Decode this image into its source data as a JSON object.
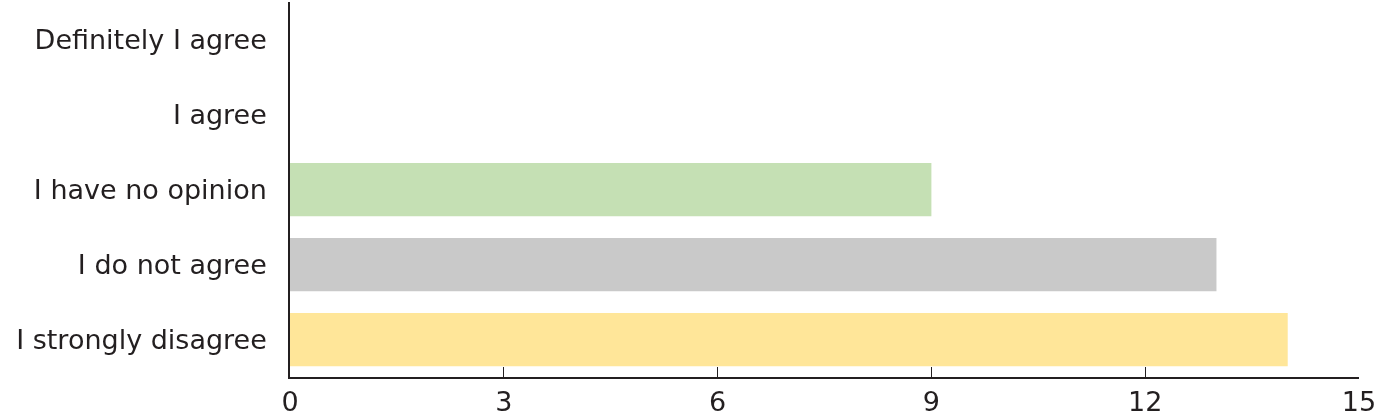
{
  "chart_data": {
    "type": "bar",
    "orientation": "horizontal",
    "categories": [
      "Definitely I agree",
      "I agree",
      "I have no opinion",
      "I do not agree",
      "I strongly disagree"
    ],
    "values": [
      0,
      0,
      9,
      13,
      14
    ],
    "colors": [
      null,
      null,
      "#c5e0b4",
      "#c9c9c9",
      "#ffe699"
    ],
    "xlim": [
      0,
      15
    ],
    "xticks": [
      0,
      3,
      6,
      9,
      12,
      15
    ],
    "grid": false
  }
}
